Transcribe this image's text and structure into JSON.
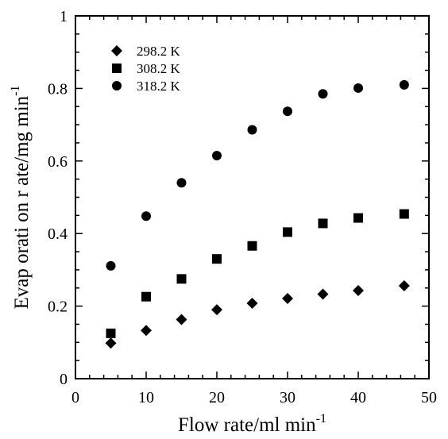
{
  "chart_data": {
    "type": "scatter",
    "title": "",
    "xlabel": "Flow rate/ml min",
    "xlabel_superscript": "-1",
    "ylabel": "Evap orati on r ate/mg min",
    "ylabel_superscript": "-1",
    "xlim": [
      0,
      50
    ],
    "ylim": [
      0,
      1
    ],
    "x_ticks": [
      "0",
      "10",
      "20",
      "30",
      "40",
      "50"
    ],
    "y_ticks": [
      "0",
      "0.2",
      "0.4",
      "0.6",
      "0.8",
      "1"
    ],
    "grid": false,
    "legend_position": "top-left",
    "series": [
      {
        "name": "298.2 K",
        "marker": "diamond",
        "color": "#000000",
        "x": [
          5,
          10,
          15,
          20,
          25,
          30,
          35,
          40,
          46.5
        ],
        "y": [
          0.098,
          0.133,
          0.163,
          0.19,
          0.208,
          0.221,
          0.233,
          0.243,
          0.256
        ]
      },
      {
        "name": "308.2 K",
        "marker": "square",
        "color": "#000000",
        "x": [
          5,
          10,
          15,
          20,
          25,
          30,
          35,
          40,
          46.5
        ],
        "y": [
          0.125,
          0.226,
          0.275,
          0.33,
          0.366,
          0.404,
          0.428,
          0.443,
          0.454
        ]
      },
      {
        "name": "318.2 K",
        "marker": "circle",
        "color": "#000000",
        "x": [
          5,
          10,
          15,
          20,
          25,
          30,
          35,
          40,
          46.5
        ],
        "y": [
          0.311,
          0.448,
          0.54,
          0.615,
          0.686,
          0.737,
          0.785,
          0.801,
          0.81
        ]
      }
    ]
  }
}
